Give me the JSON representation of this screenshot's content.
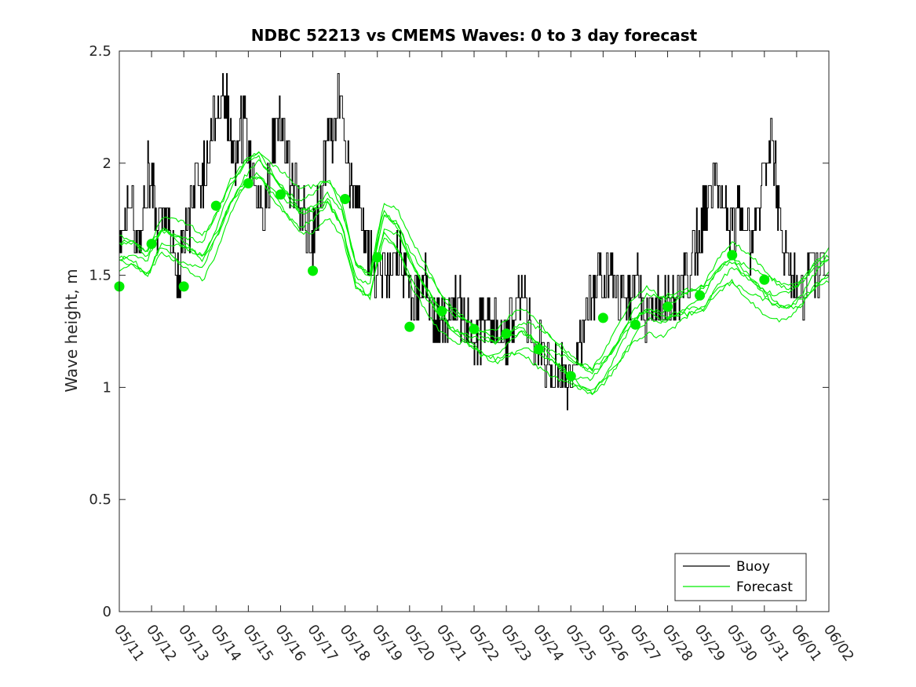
{
  "chart_data": {
    "type": "line",
    "title": "NDBC 52213 vs CMEMS Waves: 0 to 3 day forecast",
    "ylabel": "Wave height, m",
    "xlabel": "",
    "ylim": [
      0,
      2.5
    ],
    "yticks": [
      0,
      0.5,
      1,
      1.5,
      2,
      2.5
    ],
    "ytick_labels": [
      "0",
      "0.5",
      "1",
      "1.5",
      "2",
      "2.5"
    ],
    "xlim": [
      "05/11",
      "06/02"
    ],
    "xtick_labels": [
      "05/11",
      "05/12",
      "05/13",
      "05/14",
      "05/15",
      "05/16",
      "05/17",
      "05/18",
      "05/19",
      "05/20",
      "05/21",
      "05/22",
      "05/23",
      "05/24",
      "05/25",
      "05/26",
      "05/27",
      "05/28",
      "05/29",
      "05/30",
      "05/31",
      "06/01",
      "06/02"
    ],
    "grid": false,
    "legend": {
      "placement": "bottom-right",
      "entries": [
        "Buoy",
        "Forecast"
      ]
    },
    "colors": {
      "buoy": "#000000",
      "forecast": "#00ee00",
      "axis": "#262626"
    },
    "buoy_day_values": [
      1.6,
      1.9,
      1.6,
      2.0,
      1.7,
      1.8,
      1.5,
      1.7,
      1.9,
      2.0,
      2.2,
      2.3,
      2.0,
      2.2,
      1.9,
      1.7,
      2.1,
      2.2,
      1.9,
      1.8,
      1.6,
      1.9,
      2.1,
      2.3,
      1.9,
      1.8,
      1.6,
      1.5,
      1.5,
      1.6,
      1.5,
      1.4,
      1.5,
      1.3,
      1.3,
      1.4,
      1.3,
      1.2,
      1.3,
      1.3,
      1.2,
      1.3,
      1.4,
      1.2,
      1.2,
      1.1,
      1.1,
      1.0,
      1.2,
      1.4,
      1.5,
      1.5,
      1.4,
      1.4,
      1.5,
      1.3,
      1.4,
      1.4,
      1.4,
      1.5,
      1.6,
      1.8,
      2.0,
      1.8,
      1.7,
      1.8,
      1.6,
      1.9,
      2.1,
      1.7,
      1.5,
      1.4,
      1.5,
      1.5,
      1.6
    ],
    "series": [
      {
        "name": "Buoy"
      },
      {
        "name": "Forecast",
        "x": [
          "05/11",
          "05/12",
          "05/13",
          "05/14",
          "05/15",
          "05/16",
          "05/17",
          "05/18",
          "05/19",
          "05/20",
          "05/21",
          "05/22",
          "05/23",
          "05/24",
          "05/25",
          "05/26",
          "05/27",
          "05/28",
          "05/29",
          "05/30",
          "05/31"
        ],
        "markers": [
          1.45,
          1.64,
          1.45,
          1.81,
          1.91,
          1.86,
          1.52,
          1.84,
          1.58,
          1.27,
          1.34,
          1.26,
          1.24,
          1.17,
          1.05,
          1.31,
          1.28,
          1.36,
          1.41,
          1.59,
          1.48
        ]
      }
    ],
    "forecast_envelope": [
      1.6,
      1.6,
      1.55,
      1.68,
      1.65,
      1.62,
      1.58,
      1.7,
      1.85,
      1.95,
      2.0,
      1.92,
      1.85,
      1.78,
      1.8,
      1.85,
      1.75,
      1.5,
      1.45,
      1.75,
      1.7,
      1.55,
      1.45,
      1.35,
      1.28,
      1.25,
      1.2,
      1.18,
      1.22,
      1.25,
      1.2,
      1.15,
      1.1,
      1.05,
      1.03,
      1.1,
      1.2,
      1.3,
      1.35,
      1.32,
      1.35,
      1.38,
      1.4,
      1.5,
      1.55,
      1.5,
      1.45,
      1.4,
      1.38,
      1.42,
      1.5,
      1.55
    ]
  }
}
